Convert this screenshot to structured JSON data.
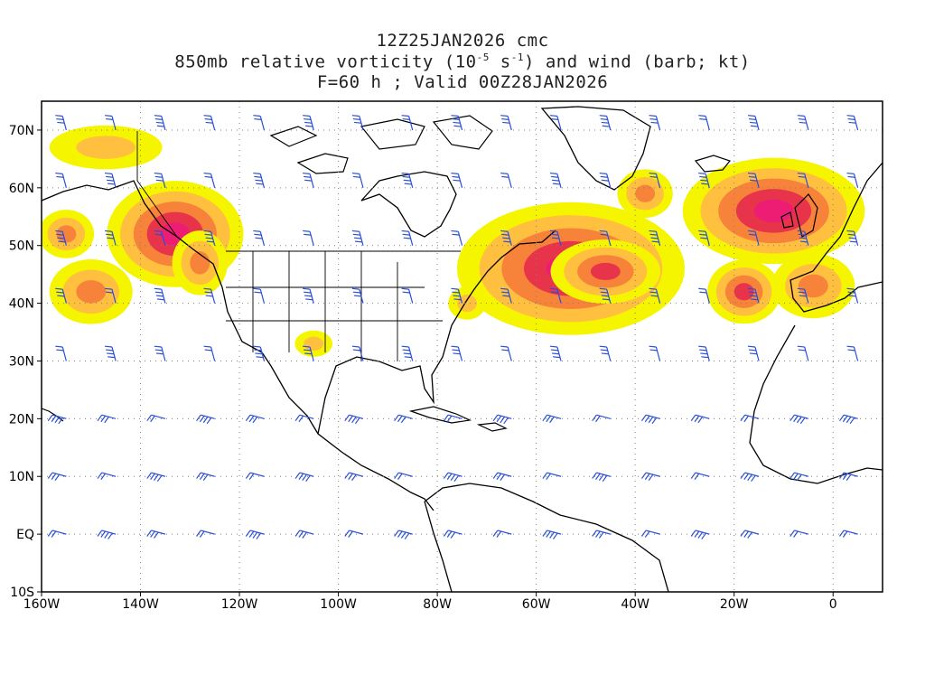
{
  "header": {
    "line1": "12Z25JAN2026 cmc",
    "line2_pre": "850mb relative vorticity (10",
    "line2_exp1": "-5",
    "line2_mid": " s",
    "line2_exp2": "-1",
    "line2_post": ") and wind (barb; kt)",
    "line3": "F=60 h ; Valid 00Z28JAN2026"
  },
  "axes": {
    "lat_labels": [
      "70N",
      "60N",
      "50N",
      "40N",
      "30N",
      "20N",
      "10N",
      "EQ",
      "10S"
    ],
    "lon_labels": [
      "160W",
      "140W",
      "120W",
      "100W",
      "80W",
      "60W",
      "40W",
      "20W",
      "0"
    ],
    "lon_range": [
      -160,
      10
    ],
    "lat_range": [
      -10,
      75
    ],
    "grid": "dotted"
  },
  "colors": {
    "yellow": "#f5f500",
    "lightyellow": "#f8f88a",
    "orange": "#ffbf3f",
    "darkorange": "#f7823a",
    "red": "#e8344a",
    "magenta": "#ee1d74",
    "barb": "#2a4fd8",
    "coast": "#000000",
    "grid": "#808080"
  },
  "vorticity_blobs": [
    {
      "lon": -155,
      "lat": 52,
      "rx": 2,
      "ry": 1.5,
      "level": 3
    },
    {
      "lon": -133,
      "lat": 52,
      "rx": 3,
      "ry": 2,
      "level": 5
    },
    {
      "lon": -128,
      "lat": 47,
      "rx": 2,
      "ry": 2,
      "level": 3
    },
    {
      "lon": -150,
      "lat": 42,
      "rx": 3,
      "ry": 2,
      "level": 3
    },
    {
      "lon": -53,
      "lat": 46,
      "rx": 5,
      "ry": 2.5,
      "level": 5
    },
    {
      "lon": -46,
      "lat": 45.5,
      "rx": 3,
      "ry": 1.5,
      "level": 4
    },
    {
      "lon": -12,
      "lat": 56,
      "rx": 4,
      "ry": 2,
      "level": 5
    },
    {
      "lon": -18,
      "lat": 42,
      "rx": 2,
      "ry": 1.5,
      "level": 4
    },
    {
      "lon": -38,
      "lat": 59,
      "rx": 2,
      "ry": 1.5,
      "level": 3
    },
    {
      "lon": -147,
      "lat": 67,
      "rx": 6,
      "ry": 2,
      "level": 2
    },
    {
      "lon": -105,
      "lat": 33,
      "rx": 2,
      "ry": 1.2,
      "level": 2
    },
    {
      "lon": -4,
      "lat": 43,
      "rx": 3,
      "ry": 2,
      "level": 3
    },
    {
      "lon": -74,
      "lat": 40,
      "rx": 2,
      "ry": 1.5,
      "level": 2
    }
  ]
}
